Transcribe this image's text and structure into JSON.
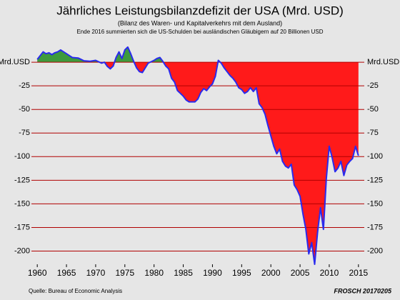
{
  "chart_data": {
    "type": "area",
    "title": "Jährliches Leistungsbilanzdefizit der USA (Mrd. USD)",
    "subtitle": "(Bilanz des Waren- und Kapitalverkehrs mit dem Ausland)",
    "note": "Ende 2016 summierten sich die US-Schulden bei ausländischen Gläubigern auf 20 Billionen USD",
    "source": "Quelle: Bureau of Economic Analysis",
    "signature": "FROSCH 20170205",
    "x": [
      1960,
      1960.5,
      1961,
      1961.5,
      1962,
      1962.5,
      1963,
      1963.5,
      1964,
      1964.5,
      1965,
      1965.5,
      1966,
      1967,
      1968,
      1969,
      1970,
      1971,
      1971.5,
      1972,
      1972.5,
      1973,
      1973.5,
      1974,
      1974.5,
      1975,
      1975.5,
      1976,
      1976.5,
      1977,
      1977.5,
      1978,
      1978.5,
      1979,
      1980,
      1980.5,
      1981,
      1981.5,
      1982,
      1982.5,
      1983,
      1983.5,
      1984,
      1984.5,
      1985,
      1985.5,
      1986,
      1986.5,
      1987,
      1987.5,
      1988,
      1988.5,
      1989,
      1989.5,
      1990,
      1990.5,
      1991,
      1991.5,
      1992,
      1992.5,
      1993,
      1993.5,
      1994,
      1994.5,
      1995,
      1995.5,
      1996,
      1996.5,
      1997,
      1997.5,
      1998,
      1998.5,
      1999,
      1999.5,
      2000,
      2000.5,
      2001,
      2001.5,
      2002,
      2002.5,
      2003,
      2003.5,
      2004,
      2004.5,
      2005,
      2005.5,
      2006,
      2006.5,
      2007,
      2007.5,
      2008,
      2008.5,
      2009,
      2009.5,
      2010,
      2010.5,
      2011,
      2011.5,
      2012,
      2012.5,
      2013,
      2013.5,
      2014,
      2014.5,
      2015
    ],
    "values": [
      3,
      7,
      11,
      9,
      10,
      8,
      10,
      11,
      13,
      11,
      9,
      7,
      5,
      4.5,
      1.5,
      1,
      2,
      -1,
      0,
      -4.5,
      -7,
      -4,
      5,
      11,
      4,
      13,
      16,
      9,
      1,
      -6,
      -10,
      -11,
      -6,
      -1,
      2,
      4,
      5,
      1,
      -4,
      -7,
      -17,
      -21,
      -30,
      -33,
      -36,
      -40,
      -42,
      -42,
      -42,
      -39,
      -32,
      -28,
      -30,
      -26,
      -23,
      -15,
      2,
      -1,
      -6,
      -10,
      -14,
      -17,
      -21,
      -27,
      -29,
      -33,
      -31,
      -27,
      -31,
      -27,
      -44,
      -48,
      -55,
      -67,
      -78,
      -89,
      -97,
      -92,
      -105,
      -110,
      -112,
      -108,
      -130,
      -135,
      -142,
      -161,
      -177,
      -203,
      -191,
      -214,
      -180,
      -154,
      -177,
      -123,
      -89,
      -101,
      -116,
      -112,
      -105,
      -120,
      -109,
      -105,
      -102,
      -89,
      -99
    ],
    "line_color": "#2a2aee",
    "positive_color": "#3d9a3d",
    "negative_color": "#ff1a1a",
    "grid_color": "#b00000",
    "xlim": [
      1959,
      2016
    ],
    "ylim": [
      -214,
      20.5
    ],
    "xticks": [
      1960,
      1965,
      1970,
      1975,
      1980,
      1985,
      1990,
      1995,
      2000,
      2005,
      2010,
      2015
    ],
    "yticks": [
      {
        "value": 0,
        "label": "Mrd.USD"
      },
      -25,
      -50,
      -75,
      -100,
      -125,
      -150,
      -175,
      -200
    ],
    "grid": true
  }
}
